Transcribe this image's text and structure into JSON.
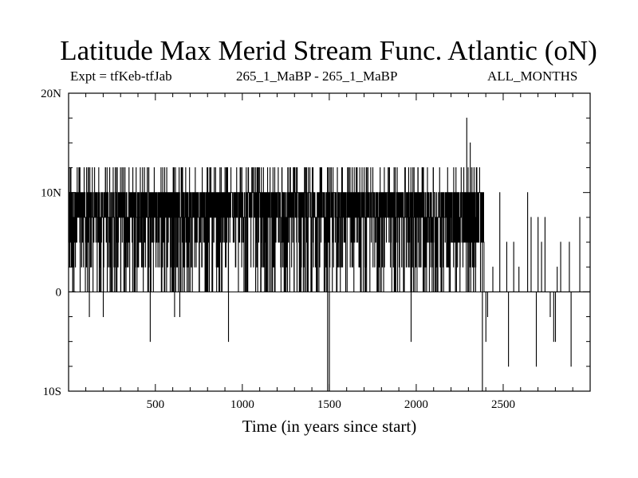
{
  "chart_data": {
    "type": "line",
    "title": "Latitude Max Merid Stream Func. Atlantic (oN)",
    "subtitle_left": "Expt = tfKeb-tfJab",
    "subtitle_center": "265_1_MaBP - 265_1_MaBP",
    "subtitle_right": "ALL_MONTHS",
    "xlabel": "Time (in years since start)",
    "ylabel": "",
    "xlim": [
      1,
      3000
    ],
    "ylim": [
      -10,
      20
    ],
    "x_ticks": [
      500,
      1000,
      1500,
      2000,
      2500
    ],
    "x_tick_labels": [
      "500",
      "1000",
      "1500",
      "2000",
      "2500"
    ],
    "y_ticks": [
      -10,
      0,
      10,
      20
    ],
    "y_tick_labels": [
      "10S",
      "0",
      "10N",
      "20N"
    ],
    "grid": false,
    "series": [
      {
        "values_description_x": "year",
        "x_start": 1,
        "x_step": 1,
        "segments": [
          {
            "from": 1,
            "to": 2200,
            "levels": [
              0,
              2.5,
              5,
              7.5,
              10,
              12.5
            ],
            "typical": [
              7.5,
              10
            ]
          },
          {
            "from": 2200,
            "to": 2390,
            "levels": [
              0,
              2.5,
              5,
              7.5,
              10,
              12.5
            ],
            "typical": [
              5,
              10
            ]
          },
          {
            "from": 2390,
            "to": 3000,
            "levels": [
              0
            ],
            "typical": [
              0
            ]
          }
        ],
        "spikes": [
          {
            "x": 120,
            "y": -2.5
          },
          {
            "x": 200,
            "y": -2.5
          },
          {
            "x": 470,
            "y": -5
          },
          {
            "x": 610,
            "y": -2.5
          },
          {
            "x": 640,
            "y": -2.5
          },
          {
            "x": 920,
            "y": -5
          },
          {
            "x": 1490,
            "y": -10
          },
          {
            "x": 1500,
            "y": -10
          },
          {
            "x": 1970,
            "y": -5
          },
          {
            "x": 2290,
            "y": 17.5
          },
          {
            "x": 2310,
            "y": 15
          },
          {
            "x": 2320,
            "y": 12.5
          },
          {
            "x": 2380,
            "y": -10
          },
          {
            "x": 2400,
            "y": -5
          },
          {
            "x": 2410,
            "y": -2.5
          },
          {
            "x": 2440,
            "y": 2.5
          },
          {
            "x": 2480,
            "y": 10
          },
          {
            "x": 2520,
            "y": 5
          },
          {
            "x": 2530,
            "y": -7.5
          },
          {
            "x": 2560,
            "y": 5
          },
          {
            "x": 2590,
            "y": 2.5
          },
          {
            "x": 2640,
            "y": 10
          },
          {
            "x": 2660,
            "y": 7.5
          },
          {
            "x": 2690,
            "y": -7.5
          },
          {
            "x": 2700,
            "y": 7.5
          },
          {
            "x": 2720,
            "y": 5
          },
          {
            "x": 2740,
            "y": 7.5
          },
          {
            "x": 2770,
            "y": -2.5
          },
          {
            "x": 2790,
            "y": -5
          },
          {
            "x": 2800,
            "y": -5
          },
          {
            "x": 2810,
            "y": 2.5
          },
          {
            "x": 2830,
            "y": 5
          },
          {
            "x": 2880,
            "y": 5
          },
          {
            "x": 2890,
            "y": -7.5
          },
          {
            "x": 2940,
            "y": 7.5
          }
        ]
      }
    ]
  }
}
